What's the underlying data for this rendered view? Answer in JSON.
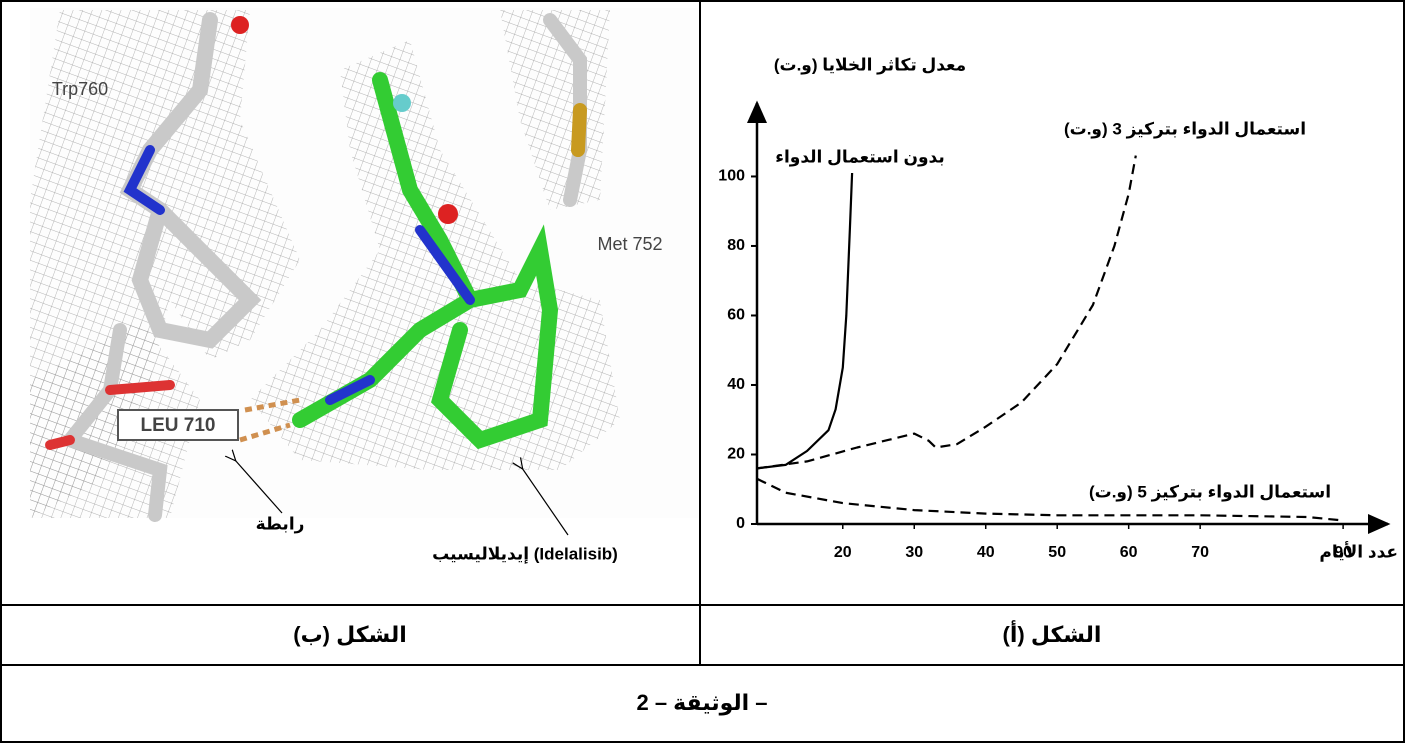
{
  "document": {
    "title": "الوثيقة – 2 –",
    "figure_b": {
      "caption": "الشكل (ب)",
      "labels": [
        "Trp760",
        "Met 752",
        "LEU 710",
        "رابطة",
        "إيديلاليسيب (Idelalisib)"
      ]
    },
    "figure_a": {
      "caption": "الشكل (أ)"
    }
  },
  "chart_data": {
    "type": "line",
    "y_label": "معدل تكاثر الخلايا (و.ت)",
    "x_label": "عدد الأيام",
    "xlim": [
      8,
      96
    ],
    "ylim": [
      0,
      122
    ],
    "xticks": [
      20,
      30,
      40,
      50,
      60,
      70,
      90
    ],
    "yticks": [
      0,
      20,
      40,
      60,
      80,
      100
    ],
    "series": [
      {
        "name": "بدون استعمال الدواء",
        "color": "#000000",
        "line_style": "solid",
        "x": [
          8,
          12,
          15,
          18,
          19,
          20,
          20.5,
          21,
          21.3
        ],
        "values": [
          16,
          17,
          21,
          27,
          33,
          45,
          60,
          85,
          101
        ]
      },
      {
        "name": "استعمال الدواء بتركيز 3 (و.ت)",
        "color": "#000000",
        "line_style": "dashed",
        "x": [
          8,
          15,
          22,
          28,
          30,
          32,
          33,
          36,
          40,
          45,
          50,
          55,
          58,
          60,
          61
        ],
        "values": [
          16,
          18,
          22,
          25,
          26,
          24,
          22,
          23,
          28,
          35,
          46,
          63,
          80,
          95,
          106
        ]
      },
      {
        "name": "استعمال الدواء بتركيز 5 (و.ت)",
        "color": "#000000",
        "line_style": "dashed",
        "x": [
          8,
          12,
          20,
          30,
          40,
          50,
          70,
          85,
          90
        ],
        "values": [
          13,
          9,
          6,
          4,
          3,
          2.5,
          2.5,
          2,
          1
        ]
      }
    ]
  }
}
